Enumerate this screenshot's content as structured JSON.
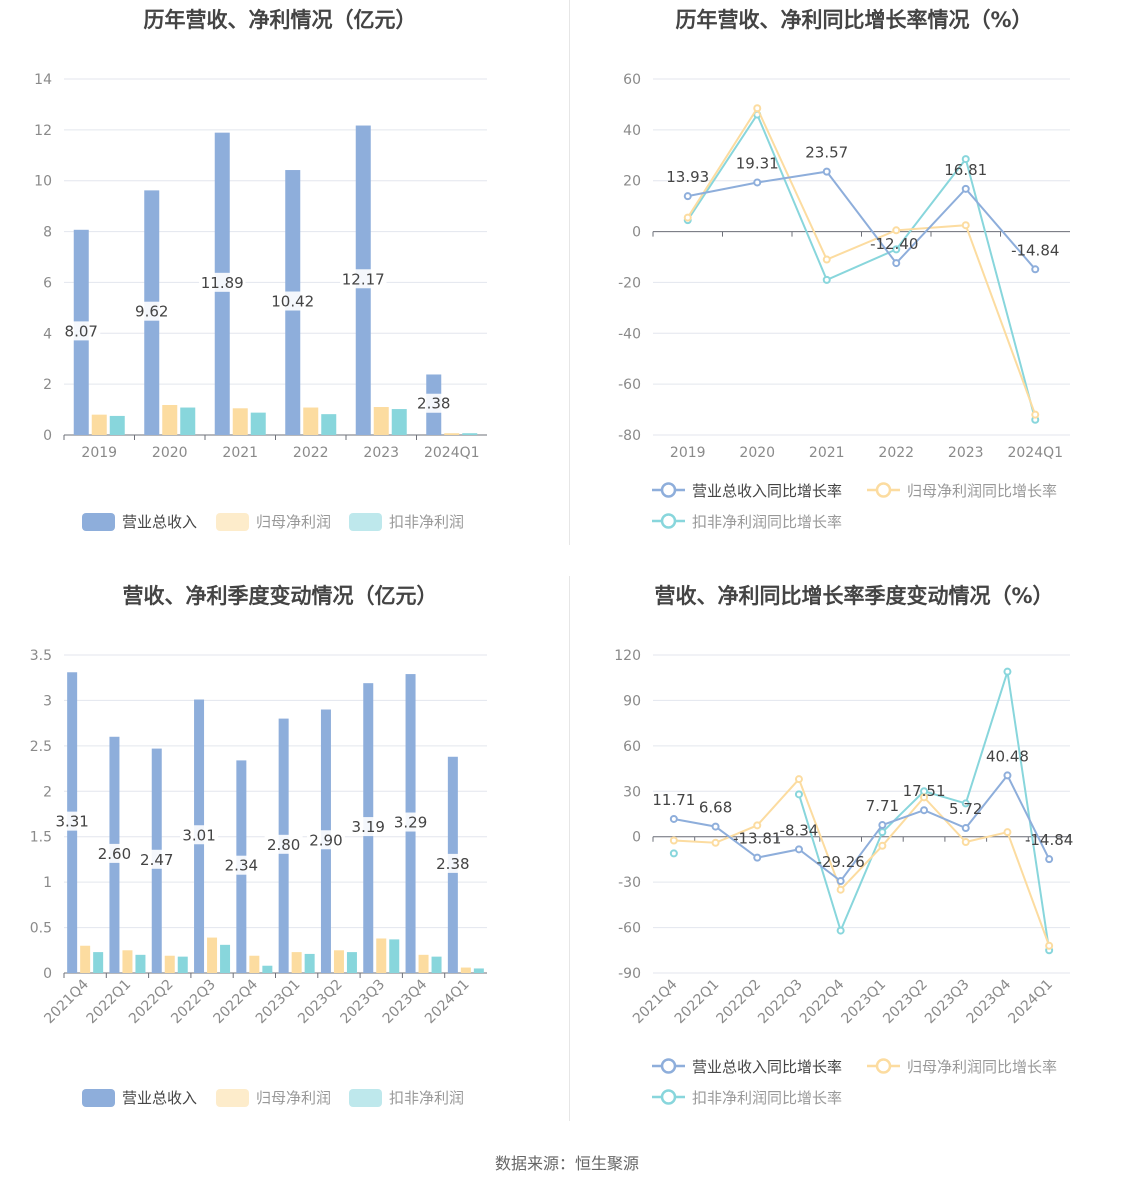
{
  "footer": "数据来源：恒生聚源",
  "colors": {
    "revenue": "#8eaedb",
    "netProfit": "#fcdca0",
    "deducted": "#88d6dc"
  },
  "chart_data": [
    {
      "id": "annual-revenue-profit",
      "type": "bar",
      "title": "历年营收、净利情况（亿元）",
      "categories": [
        "2019",
        "2020",
        "2021",
        "2022",
        "2023",
        "2024Q1"
      ],
      "ylim": [
        0,
        14
      ],
      "yticks": [
        0,
        2,
        4,
        6,
        8,
        10,
        12,
        14
      ],
      "series": [
        {
          "name": "营业总收入",
          "values": [
            8.07,
            9.62,
            11.89,
            10.42,
            12.17,
            2.38
          ],
          "labels": [
            "8.07",
            "9.62",
            "11.89",
            "10.42",
            "12.17",
            "2.38"
          ]
        },
        {
          "name": "归母净利润",
          "values": [
            0.8,
            1.18,
            1.05,
            1.08,
            1.1,
            0.07
          ]
        },
        {
          "name": "扣非净利润",
          "values": [
            0.75,
            1.08,
            0.88,
            0.82,
            1.02,
            0.07
          ]
        }
      ]
    },
    {
      "id": "annual-growth",
      "type": "line",
      "title": "历年营收、净利同比增长率情况（%）",
      "categories": [
        "2019",
        "2020",
        "2021",
        "2022",
        "2023",
        "2024Q1"
      ],
      "ylim": [
        -80,
        60
      ],
      "yticks": [
        -80,
        -60,
        -40,
        -20,
        0,
        20,
        40,
        60
      ],
      "series": [
        {
          "name": "营业总收入同比增长率",
          "values": [
            13.93,
            19.31,
            23.57,
            -12.4,
            16.81,
            -14.84
          ],
          "labels": [
            "13.93",
            "19.31",
            "23.57",
            "-12.40",
            "16.81",
            "-14.84"
          ]
        },
        {
          "name": "归母净利润同比增长率",
          "values": [
            5.5,
            48.5,
            -11.0,
            0.5,
            2.5,
            -72.0
          ]
        },
        {
          "name": "扣非净利润同比增长率",
          "values": [
            4.5,
            46.0,
            -19.0,
            -7.0,
            28.5,
            -74.0
          ]
        }
      ]
    },
    {
      "id": "quarterly-revenue-profit",
      "type": "bar",
      "title": "营收、净利季度变动情况（亿元）",
      "categories": [
        "2021Q4",
        "2022Q1",
        "2022Q2",
        "2022Q3",
        "2022Q4",
        "2023Q1",
        "2023Q2",
        "2023Q3",
        "2023Q4",
        "2024Q1"
      ],
      "ylim": [
        0,
        3.5
      ],
      "yticks": [
        0,
        0.5,
        1,
        1.5,
        2,
        2.5,
        3,
        3.5
      ],
      "ytick_labels": [
        "0",
        "0.5",
        "1",
        "1.5",
        "2",
        "2.5",
        "3",
        "3.5"
      ],
      "series": [
        {
          "name": "营业总收入",
          "values": [
            3.31,
            2.6,
            2.47,
            3.01,
            2.34,
            2.8,
            2.9,
            3.19,
            3.29,
            2.38
          ],
          "labels": [
            "3.31",
            "2.60",
            "2.47",
            "3.01",
            "2.34",
            "2.80",
            "2.90",
            "3.19",
            "3.29",
            "2.38"
          ]
        },
        {
          "name": "归母净利润",
          "values": [
            0.3,
            0.25,
            0.19,
            0.39,
            0.19,
            0.23,
            0.25,
            0.38,
            0.2,
            0.06
          ]
        },
        {
          "name": "扣非净利润",
          "values": [
            0.23,
            0.2,
            0.18,
            0.31,
            0.08,
            0.21,
            0.23,
            0.37,
            0.18,
            0.05
          ]
        }
      ]
    },
    {
      "id": "quarterly-growth",
      "type": "line",
      "title": "营收、净利同比增长率季度变动情况（%）",
      "categories": [
        "2021Q4",
        "2022Q1",
        "2022Q2",
        "2022Q3",
        "2022Q4",
        "2023Q1",
        "2023Q2",
        "2023Q3",
        "2023Q4",
        "2024Q1"
      ],
      "ylim": [
        -90,
        120
      ],
      "yticks": [
        -90,
        -60,
        -30,
        0,
        30,
        60,
        90,
        120
      ],
      "series": [
        {
          "name": "营业总收入同比增长率",
          "values": [
            11.71,
            6.68,
            -13.81,
            -8.34,
            -29.26,
            7.71,
            17.51,
            5.72,
            40.48,
            -14.84
          ],
          "labels": [
            "11.71",
            "6.68",
            "-13.81",
            "-8.34",
            "-29.26",
            "7.71",
            "17.51",
            "5.72",
            "40.48",
            "-14.84"
          ]
        },
        {
          "name": "归母净利润同比增长率",
          "values": [
            -2.5,
            -4.0,
            7.5,
            38.0,
            -35.0,
            -6.0,
            26.0,
            -3.5,
            3.0,
            -72.0
          ]
        },
        {
          "name": "扣非净利润同比增长率",
          "values": [
            -11.0,
            null,
            null,
            28.0,
            -62.0,
            3.0,
            30.0,
            22.0,
            109.0,
            -75.0
          ]
        }
      ]
    }
  ]
}
